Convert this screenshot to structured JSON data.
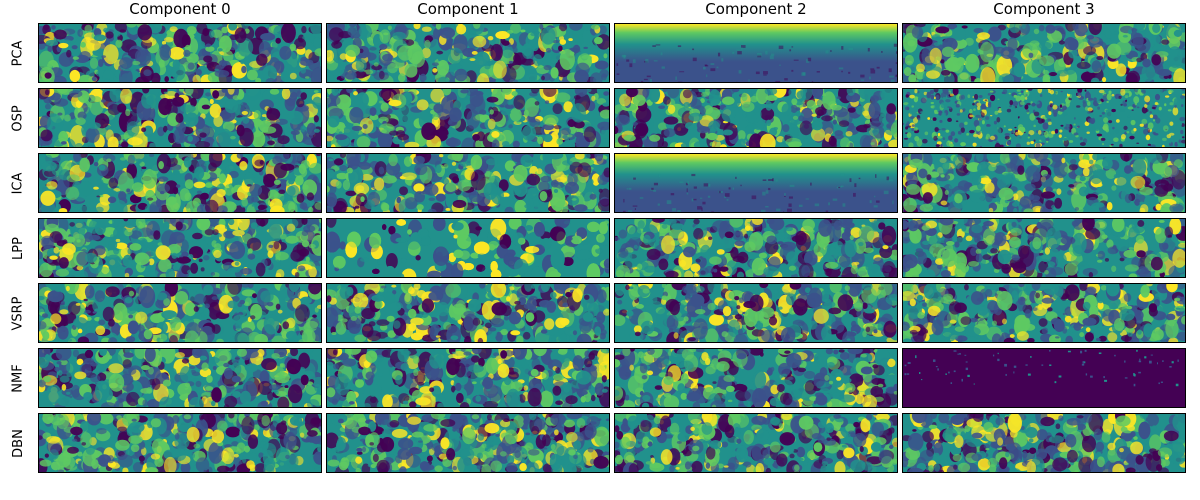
{
  "figure": {
    "columns": [
      "Component 0",
      "Component 1",
      "Component 2",
      "Component 3"
    ],
    "rows": [
      "PCA",
      "OSP",
      "ICA",
      "LPP",
      "VSRP",
      "NMF",
      "DBN"
    ],
    "colormap": "viridis",
    "palette": [
      "#440154",
      "#3b528b",
      "#21918c",
      "#5ec962",
      "#fde725"
    ],
    "panels": [
      {
        "row": "PCA",
        "column": "Component 0",
        "pattern": "texture"
      },
      {
        "row": "PCA",
        "column": "Component 1",
        "pattern": "texture"
      },
      {
        "row": "PCA",
        "column": "Component 2",
        "pattern": "vertical-gradient"
      },
      {
        "row": "PCA",
        "column": "Component 3",
        "pattern": "texture"
      },
      {
        "row": "OSP",
        "column": "Component 0",
        "pattern": "texture"
      },
      {
        "row": "OSP",
        "column": "Component 1",
        "pattern": "texture"
      },
      {
        "row": "OSP",
        "column": "Component 2",
        "pattern": "texture"
      },
      {
        "row": "OSP",
        "column": "Component 3",
        "pattern": "fine-noise"
      },
      {
        "row": "ICA",
        "column": "Component 0",
        "pattern": "texture"
      },
      {
        "row": "ICA",
        "column": "Component 1",
        "pattern": "texture"
      },
      {
        "row": "ICA",
        "column": "Component 2",
        "pattern": "vertical-gradient"
      },
      {
        "row": "ICA",
        "column": "Component 3",
        "pattern": "texture"
      },
      {
        "row": "LPP",
        "column": "Component 0",
        "pattern": "texture"
      },
      {
        "row": "LPP",
        "column": "Component 1",
        "pattern": "texture"
      },
      {
        "row": "LPP",
        "column": "Component 2",
        "pattern": "texture"
      },
      {
        "row": "LPP",
        "column": "Component 3",
        "pattern": "texture"
      },
      {
        "row": "VSRP",
        "column": "Component 0",
        "pattern": "texture"
      },
      {
        "row": "VSRP",
        "column": "Component 1",
        "pattern": "texture"
      },
      {
        "row": "VSRP",
        "column": "Component 2",
        "pattern": "texture"
      },
      {
        "row": "VSRP",
        "column": "Component 3",
        "pattern": "texture"
      },
      {
        "row": "NMF",
        "column": "Component 0",
        "pattern": "texture"
      },
      {
        "row": "NMF",
        "column": "Component 1",
        "pattern": "texture"
      },
      {
        "row": "NMF",
        "column": "Component 2",
        "pattern": "texture"
      },
      {
        "row": "NMF",
        "column": "Component 3",
        "pattern": "dark-uniform"
      },
      {
        "row": "DBN",
        "column": "Component 0",
        "pattern": "texture"
      },
      {
        "row": "DBN",
        "column": "Component 1",
        "pattern": "texture"
      },
      {
        "row": "DBN",
        "column": "Component 2",
        "pattern": "texture"
      },
      {
        "row": "DBN",
        "column": "Component 3",
        "pattern": "texture"
      }
    ]
  }
}
